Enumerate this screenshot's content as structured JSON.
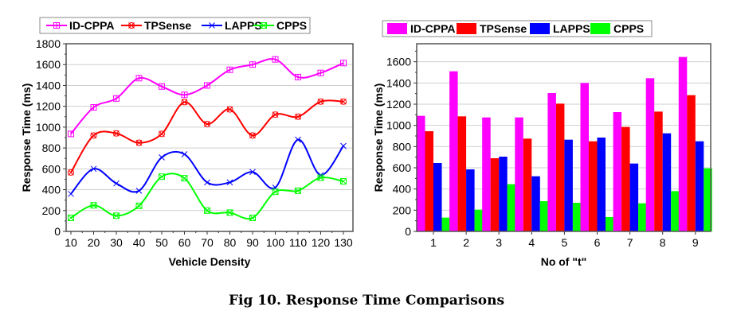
{
  "figure": {
    "caption": "Fig 10. Response Time Comparisons"
  },
  "series_colors": {
    "ID-CPPA": "#ff00ff",
    "TPSense": "#ff0000",
    "LAPPS": "#0000ff",
    "CPPS": "#00ff00"
  },
  "chart_data": [
    {
      "type": "line",
      "title": "",
      "xlabel": "Vehicle Density",
      "ylabel": "Response Time (ms)",
      "xlim": [
        10,
        130
      ],
      "ylim": [
        0,
        1800
      ],
      "xticks": [
        10,
        20,
        30,
        40,
        50,
        60,
        70,
        80,
        90,
        100,
        110,
        120,
        130
      ],
      "yticks": [
        0,
        200,
        400,
        600,
        800,
        1000,
        1200,
        1400,
        1600,
        1800
      ],
      "grid": true,
      "legend": "top",
      "x": [
        10,
        20,
        30,
        40,
        50,
        60,
        70,
        80,
        90,
        100,
        110,
        120,
        130
      ],
      "series": [
        {
          "name": "ID-CPPA",
          "marker": "square-cross",
          "values": [
            935,
            1190,
            1275,
            1470,
            1390,
            1310,
            1400,
            1550,
            1600,
            1650,
            1480,
            1520,
            1615
          ]
        },
        {
          "name": "TPSense",
          "marker": "circle-cross",
          "values": [
            565,
            920,
            940,
            850,
            935,
            1240,
            1030,
            1170,
            920,
            1120,
            1100,
            1245,
            1245
          ]
        },
        {
          "name": "LAPPS",
          "marker": "x",
          "values": [
            360,
            600,
            460,
            390,
            710,
            740,
            470,
            470,
            570,
            420,
            880,
            540,
            820
          ]
        },
        {
          "name": "CPPS",
          "marker": "square-x",
          "values": [
            130,
            250,
            150,
            245,
            525,
            510,
            200,
            180,
            130,
            380,
            390,
            515,
            480
          ]
        }
      ]
    },
    {
      "type": "bar",
      "title": "",
      "xlabel": "No of \"t\"",
      "ylabel": "Response Time (ms)",
      "categories": [
        "1",
        "2",
        "3",
        "4",
        "5",
        "6",
        "7",
        "8",
        "9"
      ],
      "ylim": [
        0,
        1770
      ],
      "yticks": [
        0,
        200,
        400,
        600,
        800,
        1000,
        1200,
        1400,
        1600
      ],
      "grid": true,
      "legend": "top",
      "series": [
        {
          "name": "ID-CPPA",
          "values": [
            1090,
            1510,
            1075,
            1075,
            1305,
            1400,
            1125,
            1445,
            1645
          ]
        },
        {
          "name": "TPSense",
          "values": [
            945,
            1085,
            690,
            875,
            1205,
            850,
            985,
            1130,
            1285
          ]
        },
        {
          "name": "LAPPS",
          "values": [
            645,
            585,
            705,
            520,
            865,
            885,
            640,
            925,
            850
          ]
        },
        {
          "name": "CPPS",
          "values": [
            130,
            205,
            445,
            285,
            270,
            135,
            265,
            380,
            595
          ]
        }
      ]
    }
  ]
}
